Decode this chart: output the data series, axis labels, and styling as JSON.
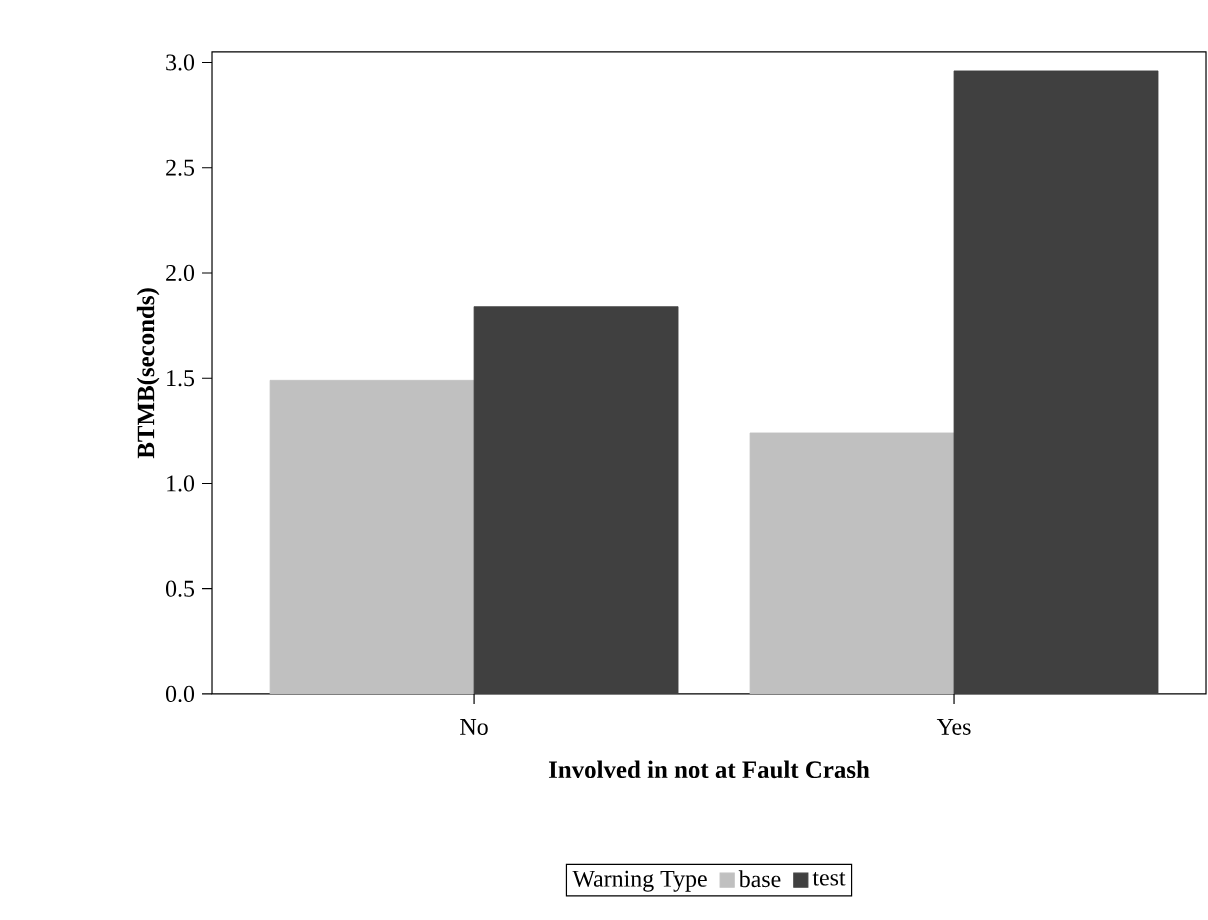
{
  "chart_data": {
    "type": "bar",
    "xlabel": "Involved in not at Fault Crash",
    "ylabel": "BTMB(seconds)",
    "legend_title": "Warning Type",
    "categories": [
      "No",
      "Yes"
    ],
    "series": [
      {
        "name": "base",
        "color": "#c0c0c0",
        "values": [
          1.49,
          1.24
        ]
      },
      {
        "name": "test",
        "color": "#404040",
        "values": [
          1.84,
          2.96
        ]
      }
    ],
    "ylim": [
      0,
      3.05
    ],
    "yticks": [
      {
        "value": 0,
        "label": "0.0"
      },
      {
        "value": 0.5,
        "label": "0.5"
      },
      {
        "value": 1,
        "label": "1.0"
      },
      {
        "value": 1.5,
        "label": "1.5"
      },
      {
        "value": 2,
        "label": "2.0"
      },
      {
        "value": 2.5,
        "label": "2.5"
      },
      {
        "value": 3,
        "label": "3.0"
      }
    ],
    "grid": false,
    "legend": "bottom"
  }
}
